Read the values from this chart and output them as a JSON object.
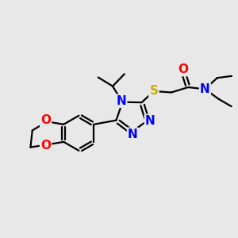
{
  "background_color": "#e8e8e8",
  "atom_colors": {
    "C": "#000000",
    "N": "#0000ff",
    "O": "#ff0000",
    "S": "#ccaa00"
  },
  "bond_color": "#000000",
  "bond_width": 1.6,
  "font_size_atom": 11,
  "fig_size": [
    3.0,
    3.0
  ],
  "dpi": 100
}
